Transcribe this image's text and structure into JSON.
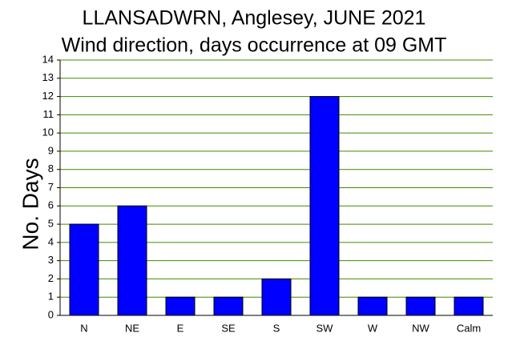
{
  "chart_data": {
    "type": "bar",
    "title": "LLANSADWRN, Anglesey, JUNE 2021",
    "subtitle": "Wind direction, days occurrence at 09 GMT",
    "y_label": "No. Days",
    "categories": [
      "N",
      "NE",
      "E",
      "SE",
      "S",
      "SW",
      "W",
      "NW",
      "Calm"
    ],
    "values": [
      5,
      6,
      1,
      1,
      2,
      12,
      1,
      1,
      1
    ],
    "color": "#0000ff",
    "grid": true,
    "grid_color": "#3c8c00",
    "ylim": [
      0,
      14
    ],
    "yticks": [
      0,
      1,
      2,
      3,
      4,
      5,
      6,
      7,
      8,
      9,
      10,
      11,
      12,
      13,
      14
    ]
  }
}
